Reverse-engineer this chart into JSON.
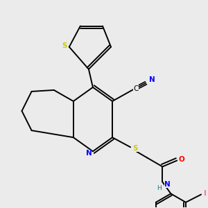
{
  "background_color": "#ebebeb",
  "bond_color": "#000000",
  "atom_colors": {
    "S": "#cccc00",
    "N": "#0000ff",
    "O": "#ff0000",
    "I": "#ff69b4",
    "C": "#000000",
    "H": "#008080"
  },
  "figsize": [
    3.0,
    3.0
  ],
  "dpi": 100
}
